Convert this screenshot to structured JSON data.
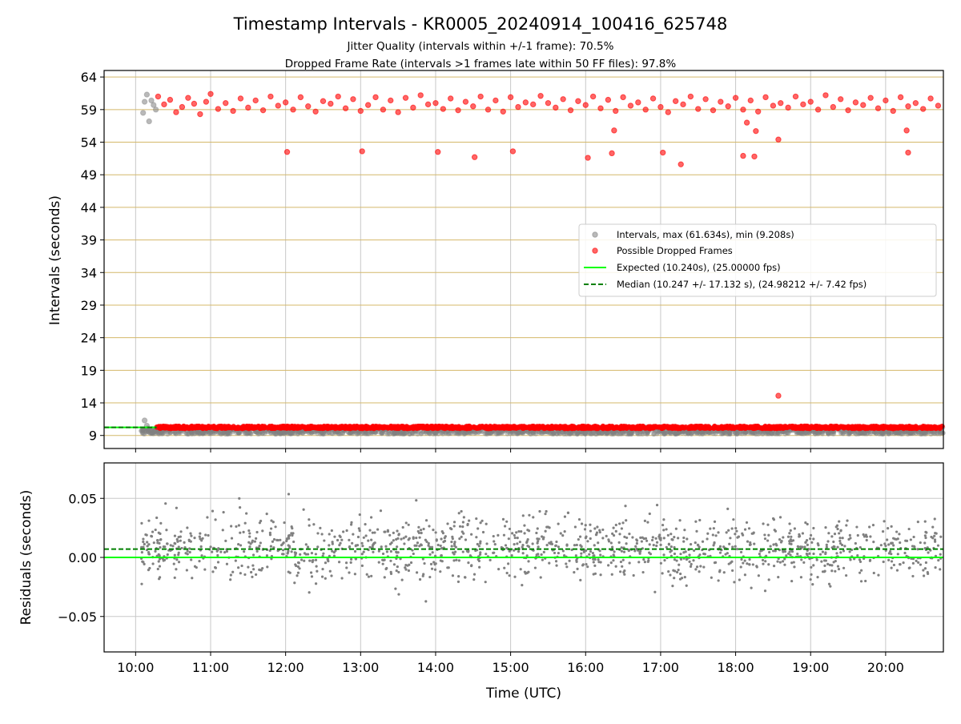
{
  "title": "Timestamp Intervals - KR0005_20240914_100416_625748",
  "subtitle_lines": [
    "Jitter Quality (intervals within +/-1 frame): 70.5%",
    "Dropped Frame Rate (intervals >1 frames late within 50 FF files): 97.8%"
  ],
  "colors": {
    "intervals": "#808080",
    "dropped": "#ff0000",
    "expected": "#00ff00",
    "median": "#008000",
    "hgrid_top": "#d4b86a",
    "grid": "#c8c8c8"
  },
  "chart_data": [
    {
      "type": "scatter",
      "ylabel": "Intervals (seconds)",
      "ylim": [
        7,
        65
      ],
      "yticks": [
        9,
        14,
        19,
        24,
        29,
        34,
        39,
        44,
        49,
        54,
        59,
        64
      ],
      "xlim": [
        9.58,
        20.77
      ],
      "grid": true,
      "legend_position": "center-right",
      "legend": [
        "Intervals, max (61.634s), min (9.208s)",
        "Possible Dropped Frames",
        "Expected (10.240s), (25.00000 fps)",
        "Median (10.247 +/- 17.132 s), (24.98212 +/- 7.42 fps)"
      ],
      "series": [
        {
          "name": "Intervals, max (61.634s), min (9.208s)",
          "kind": "scatter",
          "note_band": {
            "x_range": [
              10.07,
              20.77
            ],
            "y_range": [
              9.2,
              10.3
            ]
          },
          "x": [
            10.1,
            10.12,
            10.15,
            10.18,
            10.21,
            10.24,
            10.27,
            10.12,
            10.15
          ],
          "y": [
            58.5,
            60.2,
            61.3,
            57.2,
            60.4,
            59.7,
            59.0,
            11.3,
            10.5
          ]
        },
        {
          "name": "Possible Dropped Frames",
          "kind": "scatter",
          "dense_band": {
            "x_range": [
              10.28,
              20.77
            ],
            "y": 10.24
          },
          "x": [
            10.3,
            10.38,
            10.46,
            10.54,
            10.62,
            10.7,
            10.78,
            10.86,
            10.94,
            11.0,
            11.1,
            11.2,
            11.3,
            11.4,
            11.5,
            11.6,
            11.7,
            11.8,
            11.9,
            12.0,
            12.1,
            12.2,
            12.3,
            12.4,
            12.5,
            12.6,
            12.7,
            12.8,
            12.9,
            13.0,
            13.1,
            13.2,
            13.3,
            13.4,
            13.5,
            13.6,
            13.7,
            13.8,
            13.9,
            14.0,
            14.1,
            14.2,
            14.3,
            14.4,
            14.5,
            14.6,
            14.7,
            14.8,
            14.9,
            15.0,
            15.1,
            15.2,
            15.3,
            15.4,
            15.5,
            15.6,
            15.7,
            15.8,
            15.9,
            16.0,
            16.1,
            16.2,
            16.3,
            16.4,
            16.5,
            16.6,
            16.7,
            16.8,
            16.9,
            17.0,
            17.1,
            17.2,
            17.3,
            17.4,
            17.5,
            17.6,
            17.7,
            17.8,
            17.9,
            18.0,
            18.1,
            18.2,
            18.3,
            18.4,
            18.5,
            18.6,
            18.7,
            18.8,
            18.9,
            19.0,
            19.1,
            19.2,
            19.3,
            19.4,
            19.5,
            19.6,
            19.7,
            19.8,
            19.9,
            20.0,
            20.1,
            20.2,
            20.3,
            20.4,
            20.5,
            20.6,
            20.7,
            12.02,
            13.02,
            14.03,
            14.52,
            15.03,
            16.03,
            16.35,
            17.03,
            17.27,
            18.1,
            18.25,
            18.57,
            18.57,
            16.38,
            18.27,
            20.3,
            20.28,
            18.15
          ],
          "y": [
            61.0,
            59.8,
            60.5,
            58.6,
            59.4,
            60.8,
            59.9,
            58.3,
            60.2,
            61.4,
            59.1,
            60.0,
            58.8,
            60.7,
            59.3,
            60.4,
            58.9,
            61.0,
            59.6,
            60.1,
            59.0,
            60.9,
            59.5,
            58.7,
            60.3,
            59.9,
            61.0,
            59.2,
            60.6,
            58.8,
            59.7,
            60.9,
            59.0,
            60.4,
            58.6,
            60.8,
            59.3,
            61.2,
            59.8,
            60.0,
            59.1,
            60.7,
            58.9,
            60.2,
            59.5,
            61.0,
            59.0,
            60.4,
            58.7,
            60.9,
            59.4,
            60.1,
            59.8,
            61.1,
            60.0,
            59.3,
            60.6,
            58.9,
            60.3,
            59.7,
            61.0,
            59.2,
            60.5,
            58.8,
            60.9,
            59.6,
            60.1,
            59.0,
            60.7,
            59.4,
            58.6,
            60.3,
            59.8,
            61.0,
            59.1,
            60.6,
            58.9,
            60.2,
            59.5,
            60.8,
            59.0,
            60.4,
            58.7,
            60.9,
            59.6,
            60.0,
            59.3,
            61.0,
            59.8,
            60.2,
            59.0,
            61.2,
            59.4,
            60.6,
            58.9,
            60.1,
            59.7,
            60.8,
            59.2,
            60.4,
            58.8,
            60.9,
            59.5,
            60.0,
            59.1,
            60.7,
            59.6,
            52.5,
            52.6,
            52.5,
            51.7,
            52.6,
            51.6,
            52.3,
            52.4,
            50.6,
            51.9,
            51.8,
            54.4,
            15.1,
            55.8,
            55.7,
            52.4,
            55.8,
            57.0
          ]
        },
        {
          "name": "Expected (10.240s), (25.00000 fps)",
          "kind": "hline",
          "y": 10.24
        },
        {
          "name": "Median (10.247 +/- 17.132 s), (24.98212 +/- 7.42 fps)",
          "kind": "hline-dashed",
          "y": 10.247
        }
      ]
    },
    {
      "type": "scatter",
      "ylabel": "Residuals (seconds)",
      "xlabel": "Time (UTC)",
      "ylim": [
        -0.08,
        0.08
      ],
      "yticks": [
        -0.05,
        0.0,
        0.05
      ],
      "ytick_labels": [
        "−0.05",
        "0.00",
        "0.05"
      ],
      "xlim": [
        9.58,
        20.77
      ],
      "xticks": [
        10,
        11,
        12,
        13,
        14,
        15,
        16,
        17,
        18,
        19,
        20
      ],
      "xtick_labels": [
        "10:00",
        "11:00",
        "12:00",
        "13:00",
        "14:00",
        "15:00",
        "16:00",
        "17:00",
        "18:00",
        "19:00",
        "20:00"
      ],
      "grid": true,
      "residual_cloud": {
        "x_range": [
          10.07,
          20.77
        ],
        "y_range": [
          -0.042,
          0.06
        ],
        "center": 0.007,
        "point_count": 1400
      },
      "series": [
        {
          "name": "Expected",
          "kind": "hline",
          "y": 0.0
        },
        {
          "name": "Median",
          "kind": "hline-dashed",
          "y": 0.007
        }
      ]
    }
  ]
}
